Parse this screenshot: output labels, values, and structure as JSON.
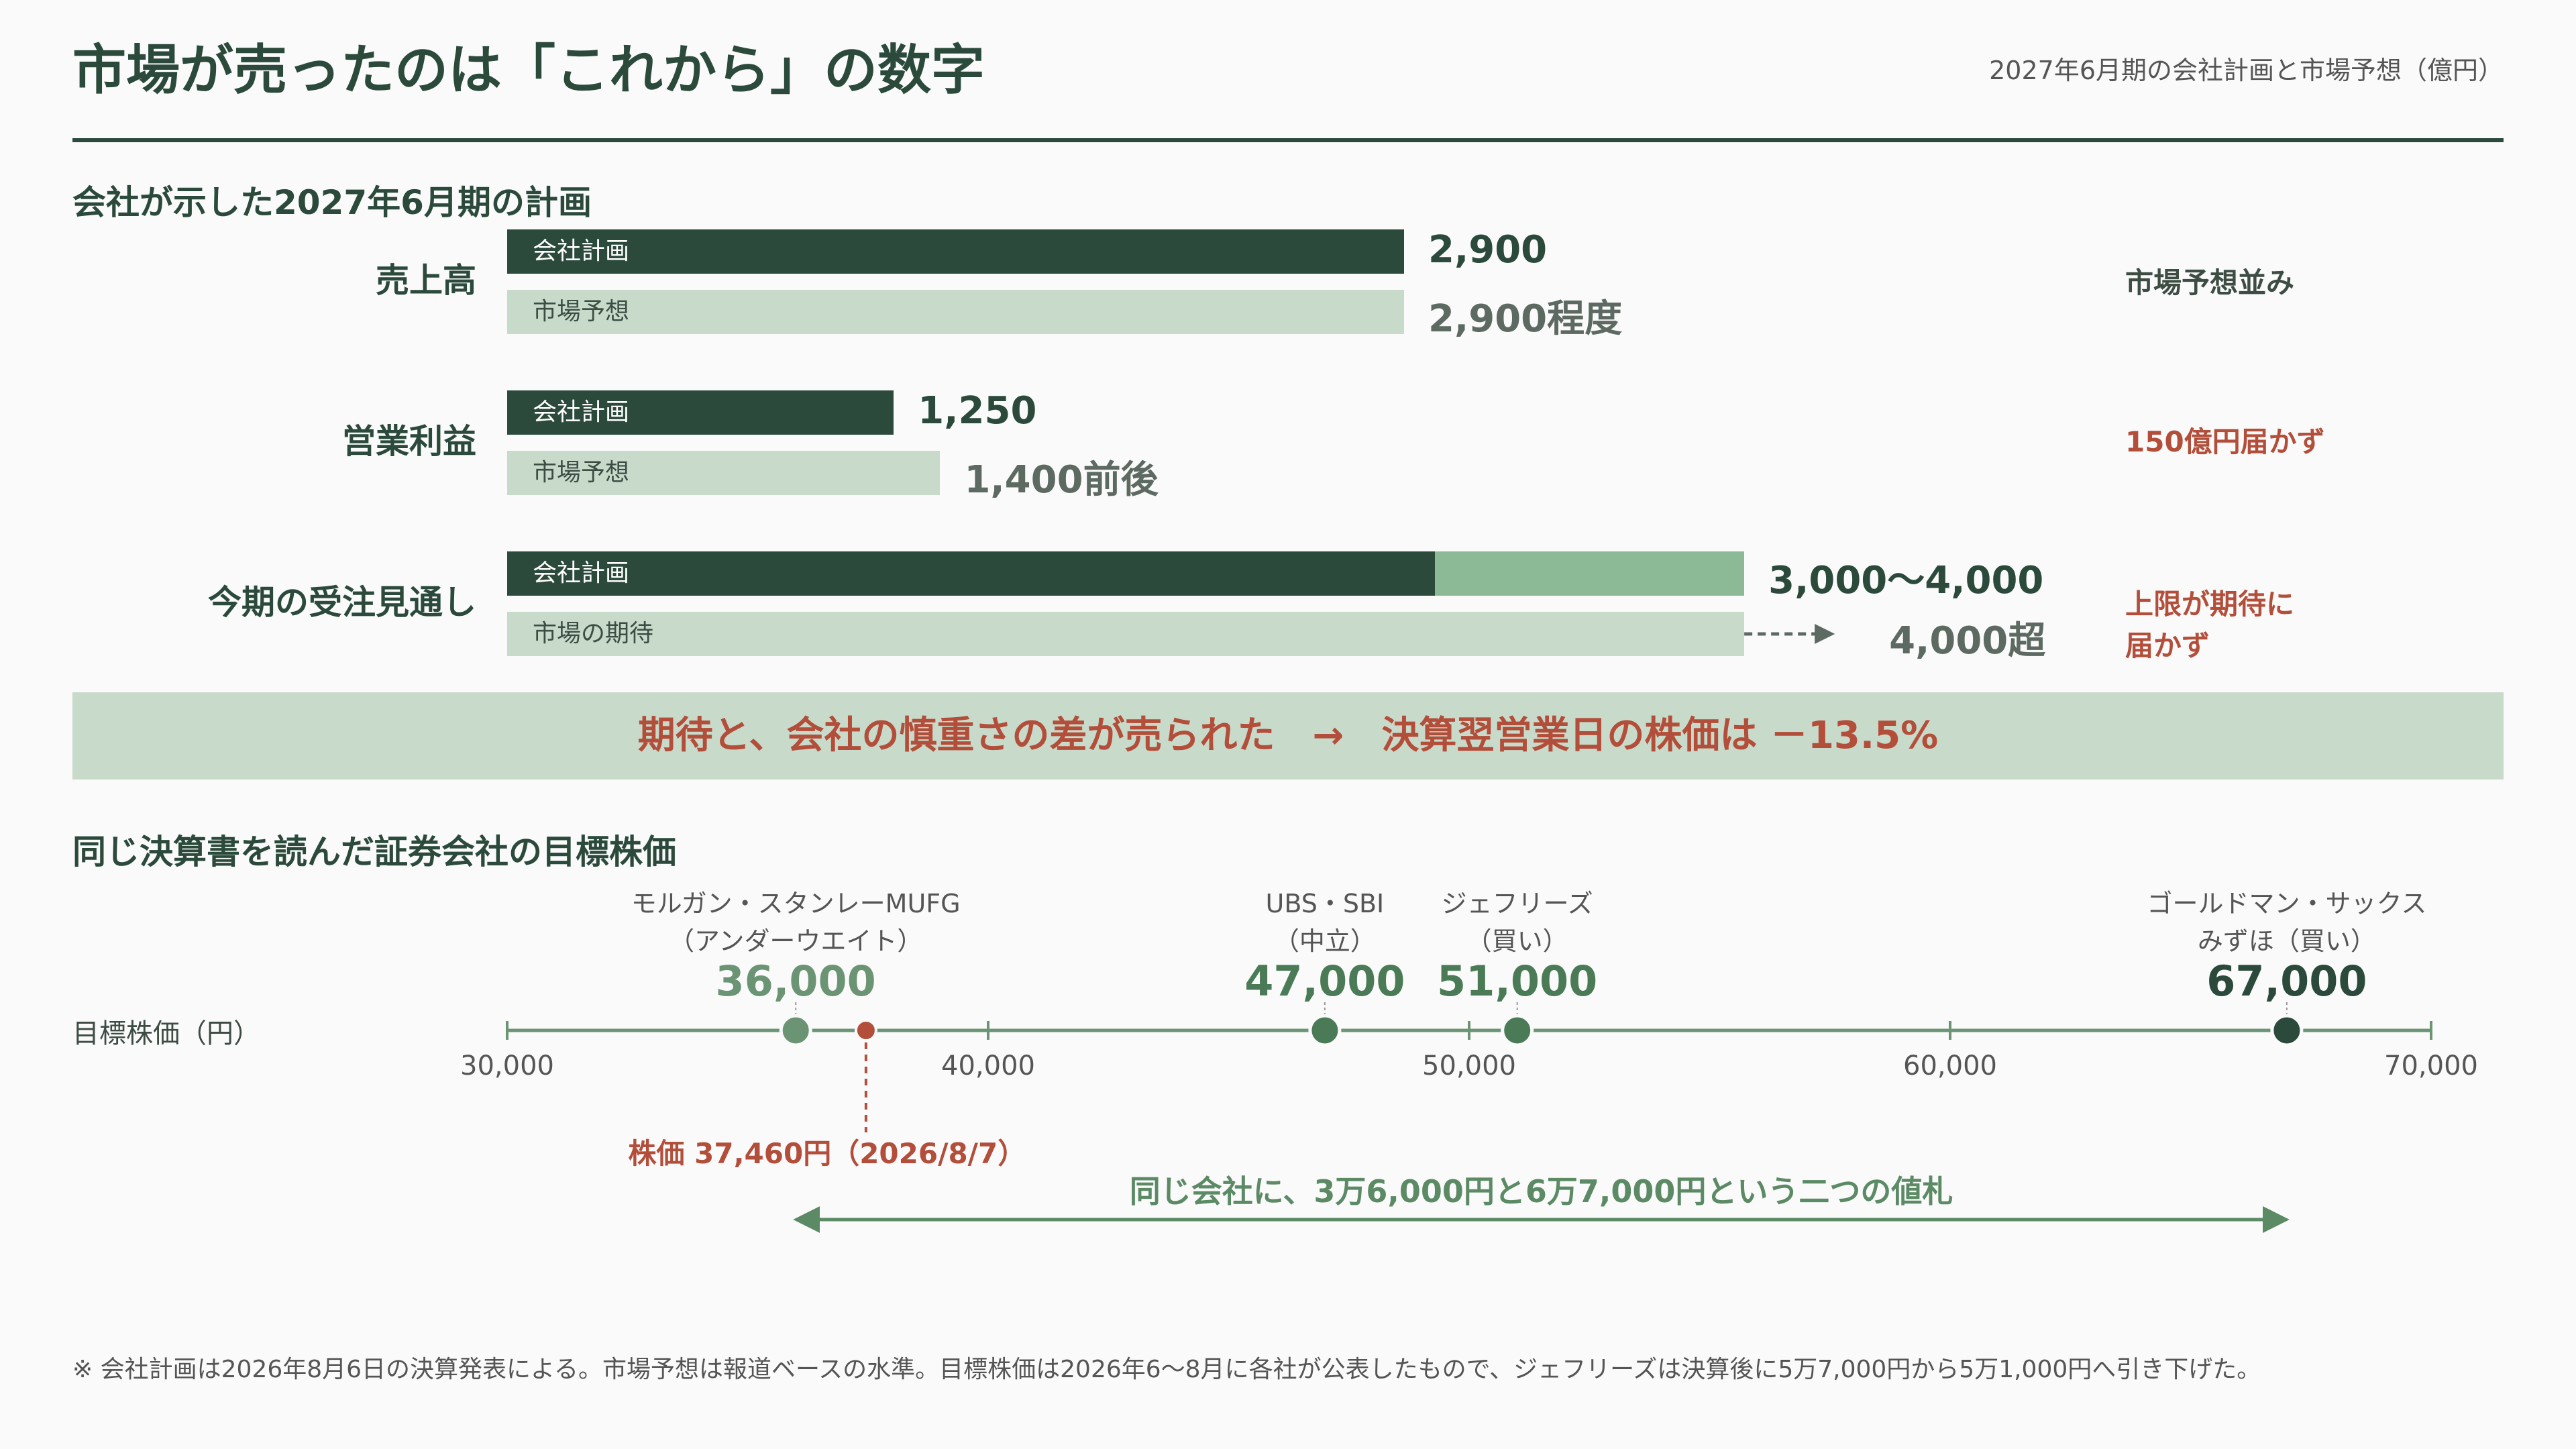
{
  "header": {
    "title": "市場が売ったのは「これから」の数字",
    "subtitle": "2027年6月期の会社計画と市場予想（億円）"
  },
  "section1": {
    "heading": "会社が示した2027年6月期の計画"
  },
  "banner": {
    "text": "期待と、会社の慎重さの差が売られた　→　決算翌営業日の株価は －13.5%"
  },
  "section2": {
    "heading": "同じ決算書を読んだ証券会社の目標株価"
  },
  "footnote": "※ 会社計画は2026年8月6日の決算発表による。市場予想は報道ベースの水準。目標株価は2026年6〜8月に各社が公表したもので、ジェフリーズは決算後に5万7,000円から5万1,000円へ引き下げた。",
  "colors": {
    "dark_green": "#2b4a3b",
    "mid_green": "#8dba96",
    "light_green": "#c8dbcb",
    "accent_red": "#b24e3a",
    "target_green": "#5b8a65"
  },
  "chart_data": [
    {
      "type": "bar",
      "orientation": "horizontal",
      "unit": "億円",
      "scale_max": 4000,
      "categories": [
        {
          "label": "売上高",
          "plan_label": "会社計画",
          "plan_value": 2900,
          "plan_text": "2,900",
          "market_label": "市場予想",
          "market_value": 2900,
          "market_text": "2,900程度",
          "note": "市場予想並み",
          "note_color": "#3d4d44"
        },
        {
          "label": "営業利益",
          "plan_label": "会社計画",
          "plan_value": 1250,
          "plan_text": "1,250",
          "market_label": "市場予想",
          "market_value": 1400,
          "market_text": "1,400前後",
          "note": "150億円届かず",
          "note_color": "#b24e3a"
        },
        {
          "label": "今期の受注見通し",
          "plan_label": "会社計画",
          "plan_value": 3000,
          "plan_value_high": 4000,
          "plan_text": "3,000〜4,000",
          "market_label": "市場の期待",
          "market_value": 4000,
          "market_text": "4,000超",
          "market_exceeds": true,
          "note": "上限が期待に\n届かず",
          "note_color": "#b24e3a"
        }
      ]
    },
    {
      "type": "scatter",
      "axis_title": "目標株価（円）",
      "xlim": [
        30000,
        70000
      ],
      "ticks": [
        {
          "value": 30000,
          "label": "30,000"
        },
        {
          "value": 40000,
          "label": "40,000"
        },
        {
          "value": 50000,
          "label": "50,000"
        },
        {
          "value": 60000,
          "label": "60,000"
        },
        {
          "value": 70000,
          "label": "70,000"
        }
      ],
      "targets": [
        {
          "firm": "モルガン・スタンレーMUFG",
          "rating": "（アンダーウエイト）",
          "value": 36000,
          "value_text": "36,000",
          "color": "#6b9474"
        },
        {
          "firm": "UBS・SBI",
          "rating": "（中立）",
          "value": 47000,
          "value_text": "47,000",
          "color": "#4a7b56"
        },
        {
          "firm": "ジェフリーズ",
          "rating": "（買い）",
          "value": 51000,
          "value_text": "51,000",
          "color": "#4a7b56"
        },
        {
          "firm": "ゴールドマン・サックス",
          "rating": "みずほ（買い）",
          "value": 67000,
          "value_text": "67,000",
          "color": "#2b4a3b"
        }
      ],
      "price": {
        "value": 37460,
        "label": "株価 37,460円（2026/8/7）",
        "color": "#b24e3a"
      },
      "range": {
        "from": 36000,
        "to": 67000,
        "label": "同じ会社に、3万6,000円と6万7,000円という二つの値札",
        "color": "#5b8a65"
      }
    }
  ]
}
